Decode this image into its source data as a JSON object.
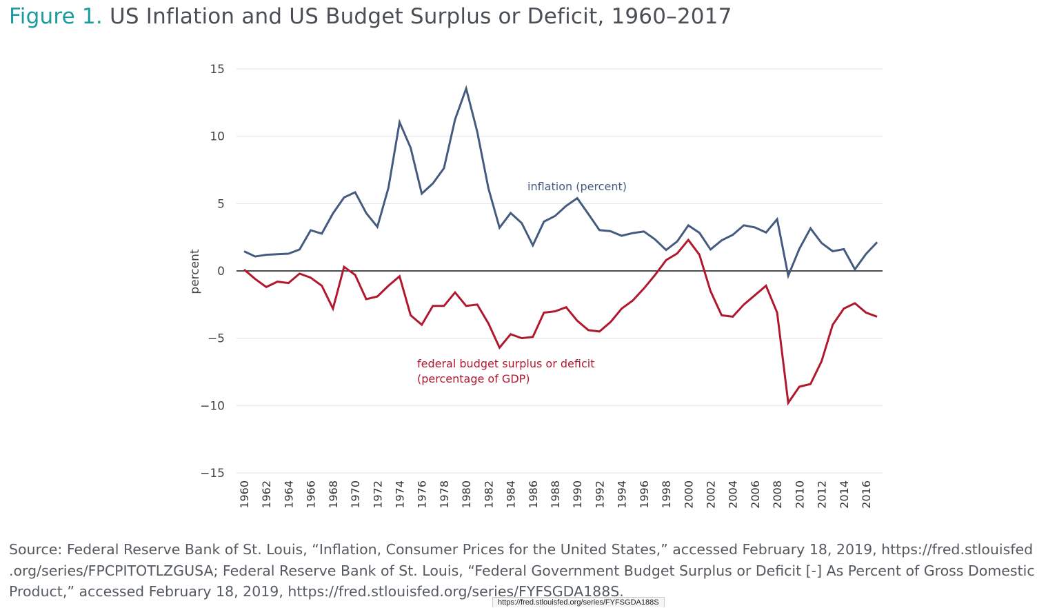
{
  "title": {
    "figure_label": "Figure 1.",
    "text": "US Inflation and US Budget Surplus or Deficit, 1960–2017"
  },
  "chart_data": {
    "type": "line",
    "title": "US Inflation and US Budget Surplus or Deficit, 1960–2017",
    "xlabel": "",
    "ylabel": "percent",
    "ylim": [
      -15,
      15
    ],
    "yticks": [
      15,
      10,
      5,
      0,
      -5,
      -10,
      -15
    ],
    "ytick_labels": [
      "15",
      "10",
      "5",
      "0",
      "−5",
      "−10",
      "−15"
    ],
    "xlim": [
      1960,
      2017
    ],
    "xticks": [
      1960,
      1962,
      1964,
      1966,
      1968,
      1970,
      1972,
      1974,
      1976,
      1978,
      1980,
      1982,
      1984,
      1986,
      1988,
      1990,
      1992,
      1994,
      1996,
      1998,
      2000,
      2002,
      2004,
      2006,
      2008,
      2010,
      2012,
      2014,
      2016
    ],
    "grid": true,
    "x": [
      1960,
      1961,
      1962,
      1963,
      1964,
      1965,
      1966,
      1967,
      1968,
      1969,
      1970,
      1971,
      1972,
      1973,
      1974,
      1975,
      1976,
      1977,
      1978,
      1979,
      1980,
      1981,
      1982,
      1983,
      1984,
      1985,
      1986,
      1987,
      1988,
      1989,
      1990,
      1991,
      1992,
      1993,
      1994,
      1995,
      1996,
      1997,
      1998,
      1999,
      2000,
      2001,
      2002,
      2003,
      2004,
      2005,
      2006,
      2007,
      2008,
      2009,
      2010,
      2011,
      2012,
      2013,
      2014,
      2015,
      2016,
      2017
    ],
    "series": [
      {
        "name": "inflation (percent)",
        "color": "#445a7e",
        "values": [
          1.46,
          1.07,
          1.2,
          1.24,
          1.28,
          1.59,
          3.02,
          2.77,
          4.27,
          5.46,
          5.84,
          4.29,
          3.27,
          6.18,
          11.05,
          9.14,
          5.74,
          6.5,
          7.63,
          11.25,
          13.55,
          10.33,
          6.13,
          3.21,
          4.3,
          3.55,
          1.9,
          3.66,
          4.08,
          4.83,
          5.4,
          4.23,
          3.03,
          2.95,
          2.61,
          2.81,
          2.93,
          2.34,
          1.55,
          2.19,
          3.38,
          2.83,
          1.59,
          2.27,
          2.68,
          3.39,
          3.23,
          2.85,
          3.84,
          -0.36,
          1.64,
          3.16,
          2.07,
          1.46,
          1.62,
          0.12,
          1.26,
          2.13
        ]
      },
      {
        "name": "federal budget surplus or deficit (percentage of GDP)",
        "color": "#b0182e",
        "values": [
          0.1,
          -0.6,
          -1.2,
          -0.8,
          -0.9,
          -0.2,
          -0.5,
          -1.1,
          -2.8,
          0.3,
          -0.3,
          -2.1,
          -1.9,
          -1.1,
          -0.4,
          -3.3,
          -4.0,
          -2.6,
          -2.6,
          -1.6,
          -2.6,
          -2.5,
          -3.9,
          -5.7,
          -4.7,
          -5.0,
          -4.9,
          -3.1,
          -3.0,
          -2.7,
          -3.7,
          -4.4,
          -4.5,
          -3.8,
          -2.8,
          -2.2,
          -1.3,
          -0.3,
          0.8,
          1.3,
          2.3,
          1.2,
          -1.5,
          -3.3,
          -3.4,
          -2.5,
          -1.8,
          -1.1,
          -3.1,
          -9.8,
          -8.6,
          -8.4,
          -6.7,
          -4.0,
          -2.8,
          -2.4,
          -3.1,
          -3.4
        ]
      }
    ],
    "annotations": {
      "inflation": "inflation (percent)",
      "deficit_line1": "federal budget surplus or deficit",
      "deficit_line2": "(percentage of GDP)"
    }
  },
  "source": "Source: Federal Reserve Bank of St. Louis, “Inflation, Consumer Prices for the United States,” accessed February 18, 2019, https://fred.stlouisfed .org/series/FPCPITOTLZGUSA; Federal Reserve Bank of St. Louis, “Federal Government Budget Surplus or Deficit [-] As Percent of Gross Domestic Product,” accessed February 18, 2019, https://fred.stlouisfed.org/series/FYFSGDA188S.",
  "tooltip": "https://fred.stlouisfed.org/series/FYFSGDA188S"
}
